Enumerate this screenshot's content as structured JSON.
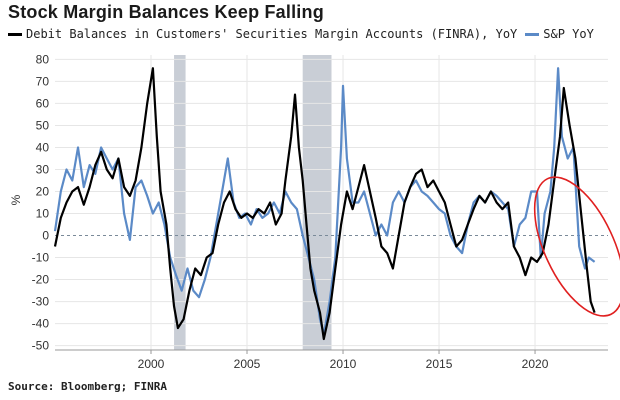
{
  "title": "Stock Margin Balances Keep Falling",
  "source": "Source: Bloomberg; FINRA",
  "colors": {
    "margin": "#000000",
    "sp": "#5b8ac7",
    "recession": "#c9ced6",
    "circle": "#e02020",
    "zero": "#7a8a99"
  },
  "chart_data": {
    "type": "line",
    "title": "Stock Margin Balances Keep Falling",
    "ylabel": "%",
    "xlabel": "",
    "ylim": [
      -52,
      82
    ],
    "xlim": [
      1995.0,
      2023.8
    ],
    "yticks": [
      80,
      70,
      60,
      50,
      40,
      30,
      20,
      10,
      0,
      -10,
      -20,
      -30,
      -40,
      -50
    ],
    "ytick_labels": [
      "80",
      "70",
      "60",
      "50",
      "40",
      "30",
      "20",
      "10",
      "0",
      "-10",
      "-20",
      "-30",
      "-40",
      "-50"
    ],
    "xticks": [
      2000,
      2005,
      2010,
      2015,
      2020
    ],
    "xtick_labels": [
      "2000",
      "2005",
      "2010",
      "2015",
      "2020"
    ],
    "grid": true,
    "legend_position": "top-left",
    "recession_bands": [
      [
        2001.2,
        2001.8
      ],
      [
        2007.9,
        2009.4
      ]
    ],
    "series": [
      {
        "name": "Debit Balances in Customers' Securities Margin Accounts (FINRA), YoY",
        "color": "#000000",
        "points": [
          [
            1995.0,
            -5
          ],
          [
            1995.3,
            8
          ],
          [
            1995.6,
            15
          ],
          [
            1995.9,
            20
          ],
          [
            1996.2,
            22
          ],
          [
            1996.5,
            14
          ],
          [
            1996.8,
            22
          ],
          [
            1997.1,
            32
          ],
          [
            1997.4,
            38
          ],
          [
            1997.7,
            30
          ],
          [
            1998.0,
            26
          ],
          [
            1998.3,
            35
          ],
          [
            1998.6,
            22
          ],
          [
            1998.9,
            18
          ],
          [
            1999.2,
            25
          ],
          [
            1999.5,
            40
          ],
          [
            1999.8,
            60
          ],
          [
            2000.1,
            76
          ],
          [
            2000.3,
            45
          ],
          [
            2000.5,
            20
          ],
          [
            2000.8,
            5
          ],
          [
            2001.0,
            -15
          ],
          [
            2001.2,
            -32
          ],
          [
            2001.4,
            -42
          ],
          [
            2001.7,
            -38
          ],
          [
            2002.0,
            -25
          ],
          [
            2002.3,
            -15
          ],
          [
            2002.6,
            -18
          ],
          [
            2002.9,
            -10
          ],
          [
            2003.2,
            -8
          ],
          [
            2003.5,
            5
          ],
          [
            2003.8,
            15
          ],
          [
            2004.1,
            20
          ],
          [
            2004.4,
            12
          ],
          [
            2004.7,
            8
          ],
          [
            2005.0,
            10
          ],
          [
            2005.3,
            8
          ],
          [
            2005.6,
            12
          ],
          [
            2005.9,
            10
          ],
          [
            2006.2,
            15
          ],
          [
            2006.5,
            5
          ],
          [
            2006.8,
            10
          ],
          [
            2007.0,
            25
          ],
          [
            2007.3,
            45
          ],
          [
            2007.5,
            64
          ],
          [
            2007.7,
            40
          ],
          [
            2007.9,
            25
          ],
          [
            2008.1,
            5
          ],
          [
            2008.3,
            -15
          ],
          [
            2008.5,
            -25
          ],
          [
            2008.8,
            -35
          ],
          [
            2009.0,
            -47
          ],
          [
            2009.3,
            -35
          ],
          [
            2009.6,
            -15
          ],
          [
            2009.9,
            5
          ],
          [
            2010.2,
            20
          ],
          [
            2010.5,
            12
          ],
          [
            2010.8,
            22
          ],
          [
            2011.1,
            32
          ],
          [
            2011.4,
            20
          ],
          [
            2011.7,
            8
          ],
          [
            2012.0,
            -5
          ],
          [
            2012.3,
            -8
          ],
          [
            2012.6,
            -15
          ],
          [
            2012.9,
            0
          ],
          [
            2013.2,
            15
          ],
          [
            2013.5,
            22
          ],
          [
            2013.8,
            28
          ],
          [
            2014.1,
            30
          ],
          [
            2014.4,
            22
          ],
          [
            2014.7,
            25
          ],
          [
            2015.0,
            20
          ],
          [
            2015.3,
            15
          ],
          [
            2015.6,
            5
          ],
          [
            2015.9,
            -5
          ],
          [
            2016.2,
            -2
          ],
          [
            2016.5,
            5
          ],
          [
            2016.8,
            12
          ],
          [
            2017.1,
            18
          ],
          [
            2017.4,
            15
          ],
          [
            2017.7,
            20
          ],
          [
            2018.0,
            15
          ],
          [
            2018.3,
            12
          ],
          [
            2018.6,
            15
          ],
          [
            2018.9,
            -5
          ],
          [
            2019.2,
            -10
          ],
          [
            2019.5,
            -18
          ],
          [
            2019.8,
            -10
          ],
          [
            2020.1,
            -12
          ],
          [
            2020.4,
            -8
          ],
          [
            2020.7,
            5
          ],
          [
            2021.0,
            25
          ],
          [
            2021.3,
            45
          ],
          [
            2021.5,
            67
          ],
          [
            2021.8,
            50
          ],
          [
            2022.1,
            35
          ],
          [
            2022.4,
            10
          ],
          [
            2022.7,
            -15
          ],
          [
            2022.9,
            -30
          ],
          [
            2023.1,
            -35
          ]
        ]
      },
      {
        "name": "S&P YoY",
        "color": "#5b8ac7",
        "points": [
          [
            1995.0,
            2
          ],
          [
            1995.3,
            20
          ],
          [
            1995.6,
            30
          ],
          [
            1995.9,
            25
          ],
          [
            1996.2,
            40
          ],
          [
            1996.5,
            22
          ],
          [
            1996.8,
            32
          ],
          [
            1997.1,
            28
          ],
          [
            1997.4,
            40
          ],
          [
            1997.7,
            35
          ],
          [
            1998.0,
            30
          ],
          [
            1998.3,
            35
          ],
          [
            1998.6,
            10
          ],
          [
            1998.9,
            -2
          ],
          [
            1999.2,
            22
          ],
          [
            1999.5,
            25
          ],
          [
            1999.8,
            18
          ],
          [
            2000.1,
            10
          ],
          [
            2000.4,
            15
          ],
          [
            2000.7,
            5
          ],
          [
            2001.0,
            -10
          ],
          [
            2001.3,
            -18
          ],
          [
            2001.6,
            -25
          ],
          [
            2001.9,
            -15
          ],
          [
            2002.2,
            -25
          ],
          [
            2002.5,
            -28
          ],
          [
            2002.8,
            -20
          ],
          [
            2003.1,
            -10
          ],
          [
            2003.4,
            5
          ],
          [
            2003.7,
            20
          ],
          [
            2004.0,
            35
          ],
          [
            2004.3,
            15
          ],
          [
            2004.6,
            8
          ],
          [
            2004.9,
            10
          ],
          [
            2005.2,
            5
          ],
          [
            2005.5,
            12
          ],
          [
            2005.8,
            8
          ],
          [
            2006.1,
            10
          ],
          [
            2006.4,
            15
          ],
          [
            2006.7,
            10
          ],
          [
            2007.0,
            20
          ],
          [
            2007.3,
            15
          ],
          [
            2007.6,
            12
          ],
          [
            2007.9,
            0
          ],
          [
            2008.2,
            -10
          ],
          [
            2008.5,
            -20
          ],
          [
            2008.8,
            -38
          ],
          [
            2009.0,
            -45
          ],
          [
            2009.3,
            -30
          ],
          [
            2009.6,
            -10
          ],
          [
            2009.9,
            40
          ],
          [
            2010.0,
            68
          ],
          [
            2010.2,
            35
          ],
          [
            2010.5,
            15
          ],
          [
            2010.8,
            15
          ],
          [
            2011.1,
            20
          ],
          [
            2011.4,
            10
          ],
          [
            2011.7,
            0
          ],
          [
            2012.0,
            5
          ],
          [
            2012.3,
            0
          ],
          [
            2012.6,
            15
          ],
          [
            2012.9,
            20
          ],
          [
            2013.2,
            15
          ],
          [
            2013.5,
            22
          ],
          [
            2013.8,
            25
          ],
          [
            2014.1,
            20
          ],
          [
            2014.4,
            18
          ],
          [
            2014.7,
            15
          ],
          [
            2015.0,
            12
          ],
          [
            2015.3,
            10
          ],
          [
            2015.6,
            0
          ],
          [
            2015.9,
            -5
          ],
          [
            2016.2,
            -8
          ],
          [
            2016.5,
            5
          ],
          [
            2016.8,
            15
          ],
          [
            2017.1,
            18
          ],
          [
            2017.4,
            15
          ],
          [
            2017.7,
            20
          ],
          [
            2018.0,
            18
          ],
          [
            2018.3,
            15
          ],
          [
            2018.6,
            12
          ],
          [
            2018.9,
            -5
          ],
          [
            2019.2,
            5
          ],
          [
            2019.5,
            8
          ],
          [
            2019.8,
            20
          ],
          [
            2020.1,
            20
          ],
          [
            2020.3,
            -10
          ],
          [
            2020.5,
            10
          ],
          [
            2020.8,
            20
          ],
          [
            2021.0,
            40
          ],
          [
            2021.2,
            76
          ],
          [
            2021.4,
            45
          ],
          [
            2021.7,
            35
          ],
          [
            2022.0,
            40
          ],
          [
            2022.3,
            -5
          ],
          [
            2022.6,
            -15
          ],
          [
            2022.8,
            -10
          ],
          [
            2023.1,
            -12
          ]
        ]
      }
    ],
    "annotation": {
      "type": "ellipse",
      "center": [
        2022.3,
        -5
      ],
      "rx_years": 1.8,
      "ry_pct": 34,
      "rotation_deg": -25
    }
  }
}
